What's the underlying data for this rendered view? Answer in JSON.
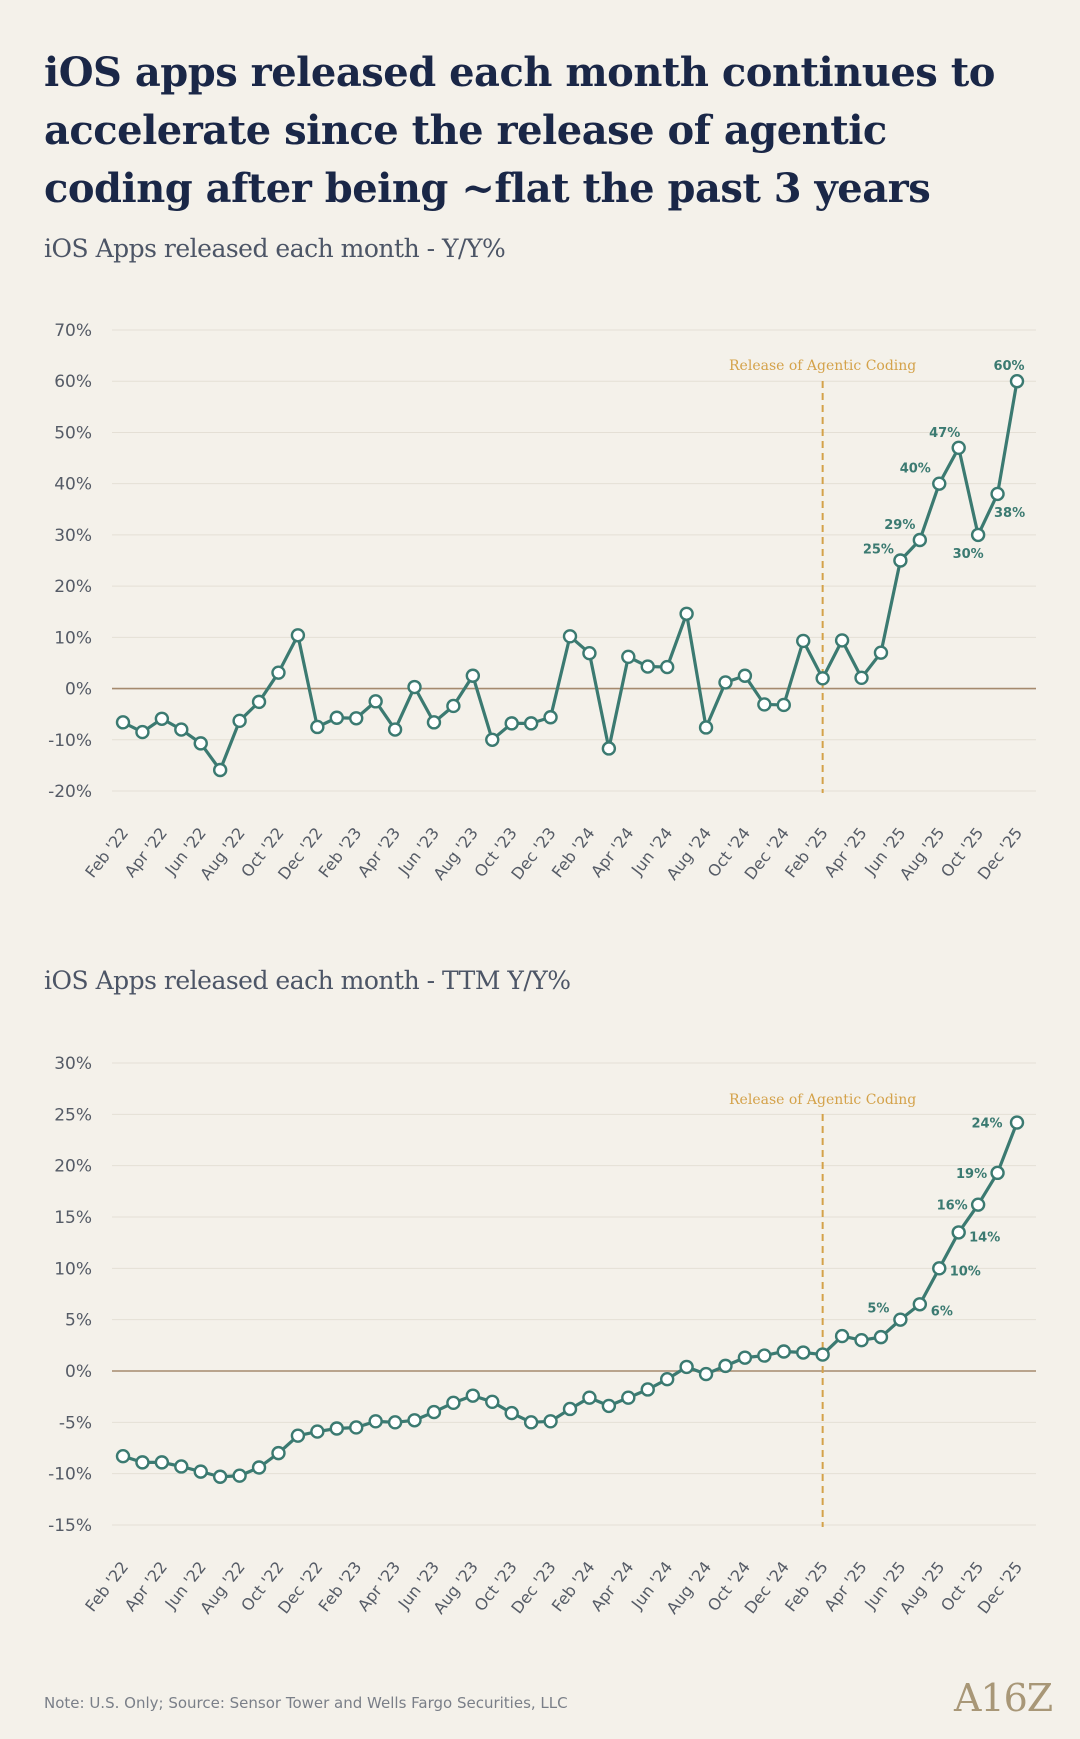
{
  "headline": "iOS apps released each month continues to accelerate since the release of agentic coding after being ~flat the past 3 years",
  "footnote": "Note: U.S. Only; Source: Sensor Tower and Wells Fargo Securities, LLC",
  "logo": "A16Z",
  "colors": {
    "line": "#3b7a71",
    "marker_fill": "#ffffff",
    "zero_line": "#a58a6e",
    "event_line": "#d4a24a",
    "grid": "#e4dfd5",
    "tick_text": "#555b66"
  },
  "chart_data": [
    {
      "type": "line",
      "title": "iOS Apps released each month - Y/Y%",
      "xlabel": "",
      "ylabel": "",
      "grid": true,
      "ylim": [
        -20,
        70
      ],
      "y_ticks": [
        -20,
        -10,
        0,
        10,
        20,
        30,
        40,
        50,
        60,
        70
      ],
      "y_tick_labels": [
        "-20%",
        "-10%",
        "0%",
        "10%",
        "20%",
        "30%",
        "40%",
        "50%",
        "60%",
        "70%"
      ],
      "x_tick_labels": [
        "Feb '22",
        "Apr '22",
        "Jun '22",
        "Aug '22",
        "Oct '22",
        "Dec '22",
        "Feb '23",
        "Apr '23",
        "Jun '23",
        "Aug '23",
        "Oct '23",
        "Dec '23",
        "Feb '24",
        "Apr '24",
        "Jun '24",
        "Aug '24",
        "Oct '24",
        "Dec '24",
        "Feb '25",
        "Apr '25",
        "Jun '25",
        "Aug '25",
        "Oct '25",
        "Dec '25"
      ],
      "event_marker": {
        "x_index": 36,
        "label": "Release of Agentic Coding"
      },
      "series": [
        {
          "values": [
            -6.6,
            -8.5,
            -5.9,
            -8.0,
            -10.7,
            -15.9,
            -6.3,
            -2.6,
            3.1,
            10.4,
            -7.5,
            -5.7,
            -5.8,
            -2.5,
            -8.0,
            0.3,
            -6.6,
            -3.4,
            2.5,
            -10.0,
            -6.8,
            -6.8,
            -5.6,
            10.2,
            6.9,
            -11.7,
            6.2,
            4.3,
            4.2,
            14.6,
            -7.6,
            1.2,
            2.5,
            -3.1,
            -3.2,
            9.3,
            2.0,
            9.4,
            2.1,
            7.0,
            25.0,
            29.0,
            40.0,
            47.0,
            30.0,
            38.0,
            60.0
          ]
        }
      ],
      "data_labels": [
        {
          "index": 40,
          "text": "25%"
        },
        {
          "index": 41,
          "text": "29%"
        },
        {
          "index": 42,
          "text": "40%"
        },
        {
          "index": 43,
          "text": "47%"
        },
        {
          "index": 44,
          "text": "30%"
        },
        {
          "index": 45,
          "text": "38%"
        },
        {
          "index": 46,
          "text": "60%"
        }
      ]
    },
    {
      "type": "line",
      "title": "iOS Apps released each month - TTM Y/Y%",
      "xlabel": "",
      "ylabel": "",
      "grid": true,
      "ylim": [
        -15,
        30
      ],
      "y_ticks": [
        -15,
        -10,
        -5,
        0,
        5,
        10,
        15,
        20,
        25,
        30
      ],
      "y_tick_labels": [
        "-15%",
        "-10%",
        "-5%",
        "0%",
        "5%",
        "10%",
        "15%",
        "20%",
        "25%",
        "30%"
      ],
      "x_tick_labels": [
        "Feb '22",
        "Apr '22",
        "Jun '22",
        "Aug '22",
        "Oct '22",
        "Dec '22",
        "Feb '23",
        "Apr '23",
        "Jun '23",
        "Aug '23",
        "Oct '23",
        "Dec '23",
        "Feb '24",
        "Apr '24",
        "Jun '24",
        "Aug '24",
        "Oct '24",
        "Dec '24",
        "Feb '25",
        "Apr '25",
        "Jun '25",
        "Aug '25",
        "Oct '25",
        "Dec '25"
      ],
      "event_marker": {
        "x_index": 36,
        "label": "Release of Agentic Coding"
      },
      "series": [
        {
          "values": [
            -8.3,
            -8.9,
            -8.9,
            -9.3,
            -9.8,
            -10.3,
            -10.2,
            -9.4,
            -8.0,
            -6.3,
            -5.9,
            -5.6,
            -5.5,
            -4.9,
            -5.0,
            -4.8,
            -4.0,
            -3.1,
            -2.4,
            -3.0,
            -4.1,
            -5.0,
            -4.9,
            -3.7,
            -2.6,
            -3.4,
            -2.6,
            -1.8,
            -0.8,
            0.4,
            -0.3,
            0.5,
            1.3,
            1.5,
            1.9,
            1.8,
            1.6,
            3.4,
            3.0,
            3.3,
            5.0,
            6.5,
            10.0,
            13.5,
            16.2,
            19.3,
            24.2
          ]
        }
      ],
      "data_labels": [
        {
          "index": 40,
          "text": "5%"
        },
        {
          "index": 41,
          "text": "6%"
        },
        {
          "index": 42,
          "text": "10%"
        },
        {
          "index": 43,
          "text": "14%"
        },
        {
          "index": 44,
          "text": "16%"
        },
        {
          "index": 45,
          "text": "19%"
        },
        {
          "index": 46,
          "text": "24%"
        }
      ]
    }
  ]
}
